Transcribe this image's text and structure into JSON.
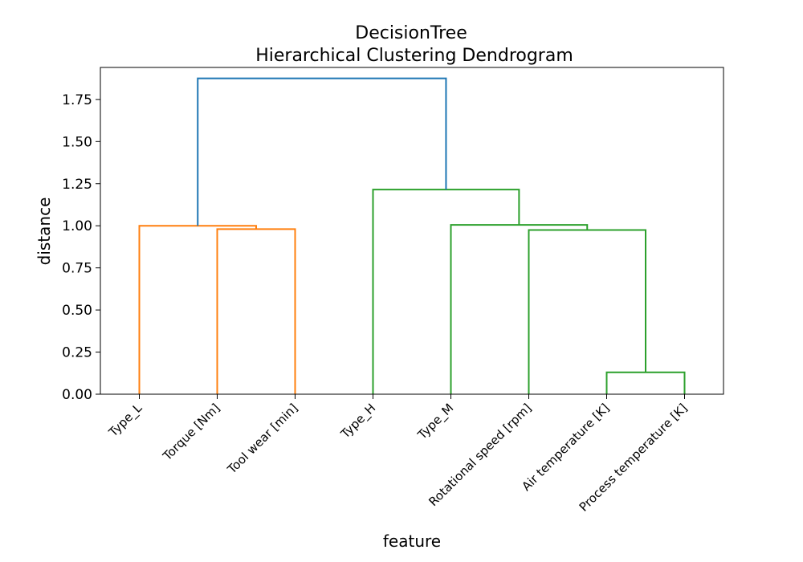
{
  "chart_data": {
    "type": "dendrogram",
    "title": "DecisionTree",
    "subtitle": "Hierarchical Clustering Dendrogram",
    "xlabel": "feature",
    "ylabel": "distance",
    "ylim": [
      0,
      1.94
    ],
    "yticks": [
      "0.00",
      "0.25",
      "0.50",
      "0.75",
      "1.00",
      "1.25",
      "1.50",
      "1.75"
    ],
    "leaves": [
      "Type_L",
      "Torque [Nm]",
      "Tool wear [min]",
      "Type_H",
      "Type_M",
      "Rotational speed [rpm]",
      "Air temperature [K]",
      "Process temperature [K]"
    ],
    "colors": {
      "cluster_1": "#ff7f0e",
      "cluster_2": "#2ca02c",
      "root": "#1f77b4"
    },
    "links": [
      {
        "left": 6,
        "right": 7,
        "left_height": 0,
        "right_height": 0,
        "height": 0.13,
        "color": "cluster_2"
      },
      {
        "left": 5,
        "right": 6.5,
        "left_height": 0,
        "right_height": 0.13,
        "height": 0.975,
        "color": "cluster_2"
      },
      {
        "left": 4,
        "right": 5.75,
        "left_height": 0,
        "right_height": 0.975,
        "height": 1.005,
        "color": "cluster_2"
      },
      {
        "left": 3,
        "right": 4.875,
        "left_height": 0,
        "right_height": 1.005,
        "height": 1.215,
        "color": "cluster_2"
      },
      {
        "left": 1,
        "right": 2,
        "left_height": 0,
        "right_height": 0,
        "height": 0.98,
        "color": "cluster_1"
      },
      {
        "left": 0,
        "right": 1.5,
        "left_height": 0,
        "right_height": 0.98,
        "height": 1.0,
        "color": "cluster_1"
      },
      {
        "left": 0.75,
        "right": 3.9375,
        "left_height": 1.0,
        "right_height": 1.215,
        "height": 1.875,
        "color": "root"
      }
    ]
  }
}
